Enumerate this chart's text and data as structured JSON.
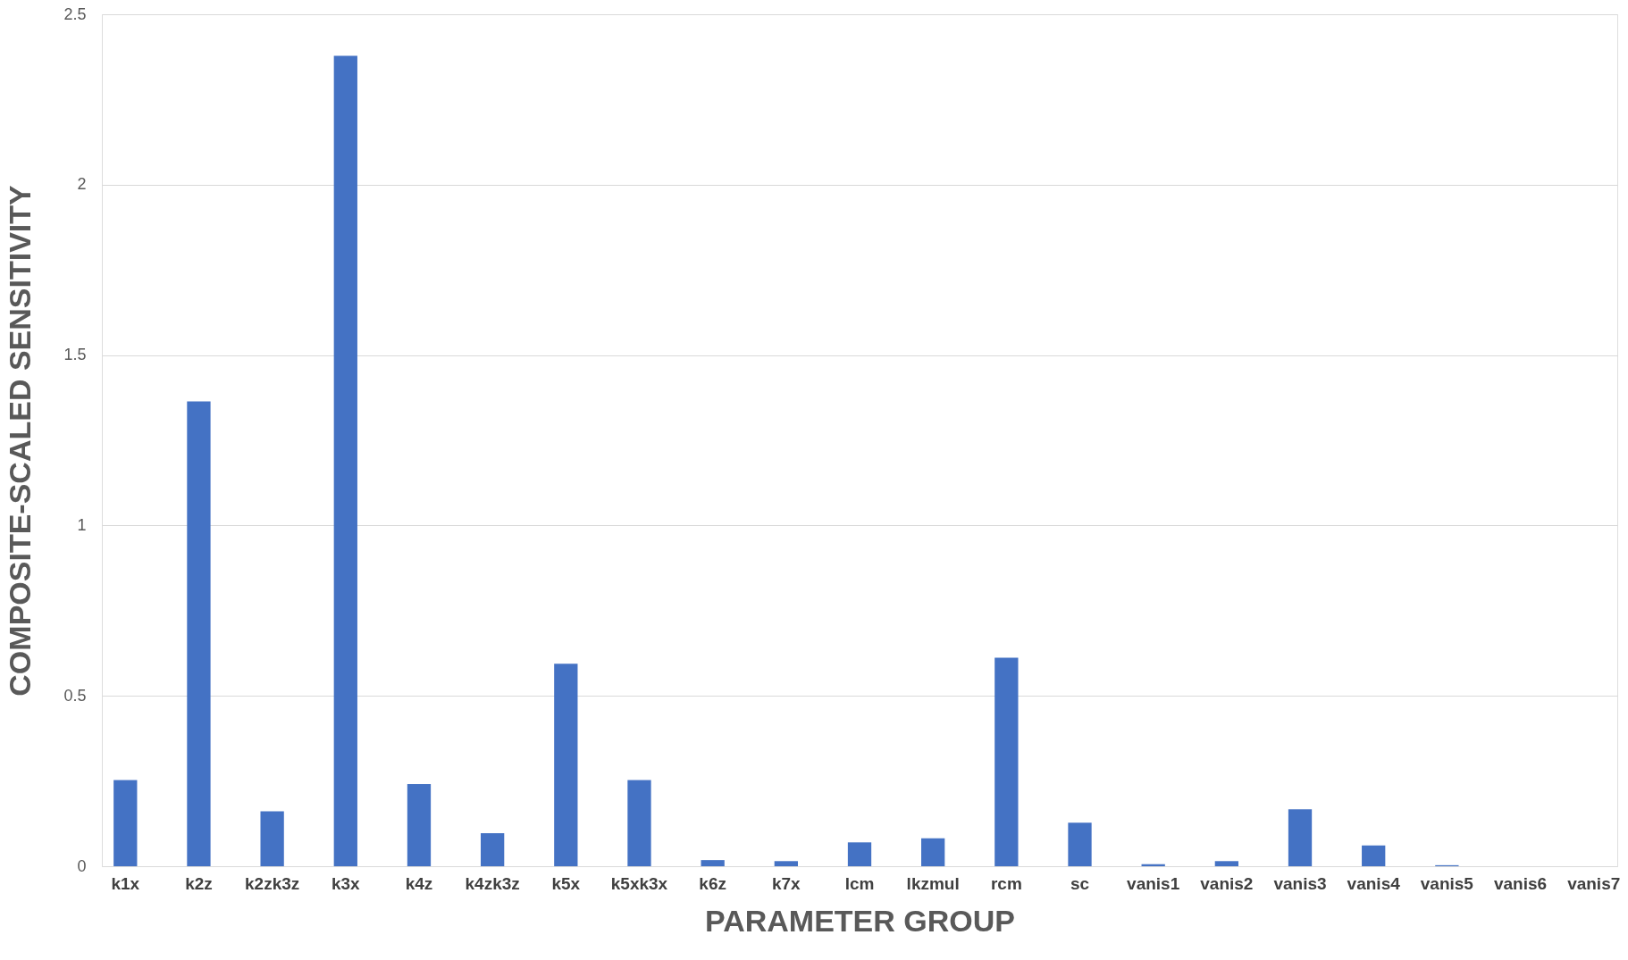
{
  "chart_data": {
    "type": "bar",
    "xlabel": "PARAMETER GROUP",
    "ylabel": "COMPOSITE-SCALED SENSITIVITY",
    "categories": [
      "k1x",
      "k2z",
      "k2zk3z",
      "k3x",
      "k4z",
      "k4zk3z",
      "k5x",
      "k5xk3x",
      "k6z",
      "k7x",
      "lcm",
      "lkzmul",
      "rcm",
      "sc",
      "vanis1",
      "vanis2",
      "vanis3",
      "vanis4",
      "vanis5",
      "vanis6",
      "vanis7"
    ],
    "values": [
      0.253,
      1.364,
      0.161,
      2.378,
      0.241,
      0.097,
      0.594,
      0.253,
      0.018,
      0.015,
      0.07,
      0.082,
      0.612,
      0.128,
      0.006,
      0.015,
      0.167,
      0.061,
      0.003,
      0,
      0
    ],
    "color": "#4472c4",
    "ylim": [
      0,
      2.5
    ],
    "yticks": [
      0,
      0.5,
      1,
      1.5,
      2,
      2.5
    ],
    "grid": "y"
  }
}
